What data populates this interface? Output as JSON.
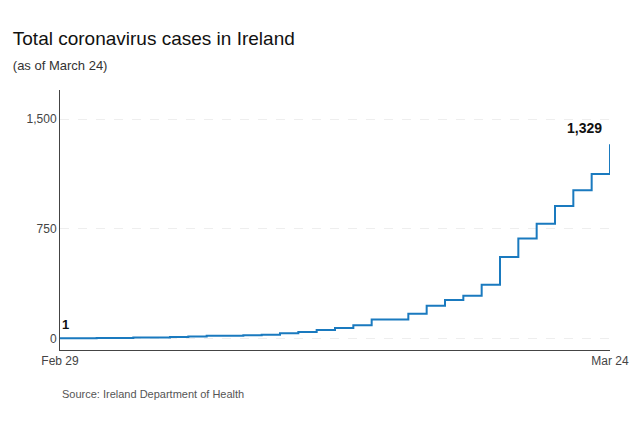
{
  "chart_data": {
    "type": "line",
    "title": "Total coronavirus cases in Ireland",
    "subtitle": "(as of March 24)",
    "source": "Source: Ireland Department of Health",
    "categories": [
      "Feb 29",
      null,
      null,
      null,
      null,
      null,
      null,
      null,
      null,
      null,
      null,
      null,
      null,
      null,
      null,
      null,
      null,
      null,
      null,
      null,
      null,
      null,
      null,
      null,
      null,
      null,
      null,
      null,
      null,
      null,
      "Mar 24"
    ],
    "values": [
      1,
      1,
      2,
      2,
      6,
      6,
      9,
      13,
      18,
      18,
      21,
      24,
      34,
      43,
      57,
      70,
      90,
      129,
      129,
      169,
      223,
      262,
      292,
      366,
      557,
      683,
      785,
      906,
      1014,
      1125,
      1329
    ],
    "color": "#1a7abf",
    "line_style": "step",
    "ylim": [
      -80,
      1700
    ],
    "yticks": [
      0,
      750,
      {
        "value": 1500,
        "label": "1,500"
      }
    ],
    "grid": true,
    "annotations": [
      "1",
      "1,329"
    ]
  }
}
